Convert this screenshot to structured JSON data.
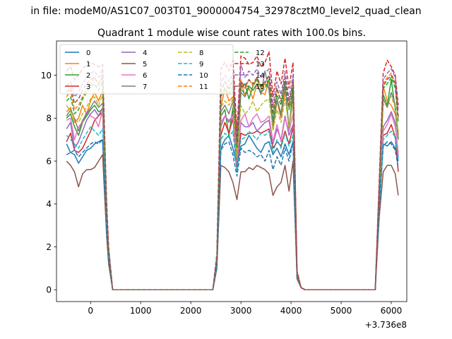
{
  "chart_data": {
    "type": "line",
    "suptitle": "in file: modeM0/AS1C07_003T01_9000004754_32978cztM0_level2_quad_clean",
    "title": "Quadrant 1 module wise count rates with 100.0s bins.",
    "xlabel": "",
    "ylabel": "",
    "x_offset_label": "+3.736e8",
    "xlim": [
      -680,
      6310
    ],
    "ylim": [
      -0.55,
      11.6
    ],
    "xticks": [
      0,
      1000,
      2000,
      3000,
      4000,
      5000,
      6000
    ],
    "xtick_labels": [
      "0",
      "1000",
      "2000",
      "3000",
      "4000",
      "5000",
      "6000"
    ],
    "yticks": [
      0,
      2,
      4,
      6,
      8,
      10
    ],
    "ytick_labels": [
      "0",
      "2",
      "4",
      "6",
      "8",
      "10"
    ],
    "x": [
      -480,
      -400,
      -320,
      -240,
      -160,
      -80,
      0,
      80,
      160,
      240,
      320,
      360,
      440,
      2440,
      2520,
      2600,
      2680,
      2760,
      2840,
      2920,
      3000,
      3080,
      3160,
      3240,
      3320,
      3400,
      3480,
      3560,
      3640,
      3720,
      3800,
      3880,
      3960,
      4040,
      4120,
      4200,
      4280,
      5680,
      5760,
      5840,
      5920,
      6000,
      6080,
      6140
    ],
    "legend": {
      "placement": "top-left",
      "columns": 4
    },
    "series": [
      {
        "name": "0",
        "color": "#1f77b4",
        "dash": "solid",
        "values": [
          6.8,
          6.4,
          6.3,
          5.9,
          6.2,
          6.5,
          6.6,
          6.8,
          6.9,
          7.0,
          3.0,
          1.5,
          0,
          0,
          1.2,
          6.6,
          7.0,
          7.2,
          6.6,
          5.8,
          6.7,
          6.8,
          7.2,
          6.9,
          6.6,
          6.4,
          6.8,
          6.9,
          6.3,
          6.6,
          6.2,
          6.8,
          6.3,
          6.9,
          0.6,
          0.1,
          0,
          0,
          4.0,
          6.8,
          6.7,
          6.9,
          6.6,
          6.0
        ]
      },
      {
        "name": "1",
        "color": "#ff7f0e",
        "dash": "solid",
        "values": [
          8.3,
          8.5,
          7.8,
          8.0,
          8.6,
          8.2,
          8.8,
          9.2,
          8.8,
          9.3,
          3.5,
          1.8,
          0,
          0,
          1.4,
          8.5,
          9.4,
          8.8,
          9.0,
          6.2,
          9.8,
          9.0,
          9.4,
          8.9,
          9.6,
          9.2,
          9.1,
          9.8,
          7.5,
          8.8,
          8.0,
          9.2,
          8.5,
          8.8,
          0.7,
          0.1,
          0,
          0,
          4.5,
          9.5,
          8.8,
          8.6,
          8.2,
          7.4
        ]
      },
      {
        "name": "2",
        "color": "#2ca02c",
        "dash": "solid",
        "values": [
          8.0,
          8.2,
          7.6,
          7.2,
          7.8,
          8.1,
          8.4,
          8.6,
          8.3,
          8.4,
          3.3,
          1.7,
          0,
          0,
          1.3,
          8.1,
          8.4,
          7.2,
          8.5,
          5.8,
          9.4,
          9.6,
          8.9,
          9.5,
          9.8,
          9.4,
          9.6,
          9.4,
          7.8,
          8.9,
          8.2,
          9.6,
          7.4,
          9.5,
          0.7,
          0.1,
          0,
          0,
          4.4,
          9.1,
          8.6,
          9.8,
          8.4,
          7.0
        ]
      },
      {
        "name": "3",
        "color": "#d62728",
        "dash": "solid",
        "values": [
          6.9,
          7.3,
          6.5,
          6.4,
          6.6,
          7.0,
          7.4,
          7.9,
          8.1,
          8.3,
          3.2,
          1.6,
          0,
          0,
          1.2,
          7.2,
          7.8,
          7.3,
          8.0,
          5.6,
          7.3,
          7.2,
          7.3,
          7.3,
          7.4,
          7.3,
          7.4,
          7.5,
          6.6,
          6.9,
          6.7,
          7.4,
          6.8,
          7.6,
          0.6,
          0.1,
          0,
          0,
          4.0,
          7.2,
          7.3,
          7.7,
          7.1,
          5.5
        ]
      },
      {
        "name": "4",
        "color": "#9467bd",
        "dash": "solid",
        "values": [
          7.5,
          7.8,
          6.6,
          6.9,
          7.4,
          7.9,
          8.2,
          8.4,
          8.1,
          8.5,
          3.3,
          1.6,
          0,
          0,
          1.3,
          7.6,
          8.1,
          7.8,
          8.2,
          5.9,
          7.8,
          7.6,
          7.6,
          7.8,
          7.4,
          7.6,
          7.8,
          7.9,
          6.8,
          7.5,
          7.0,
          8.1,
          7.2,
          7.7,
          0.6,
          0.1,
          0,
          0,
          4.2,
          7.6,
          7.9,
          8.3,
          7.8,
          6.2
        ]
      },
      {
        "name": "5",
        "color": "#8c564b",
        "dash": "solid",
        "values": [
          6.0,
          5.8,
          5.5,
          4.8,
          5.4,
          5.6,
          5.6,
          5.7,
          6.0,
          6.3,
          2.5,
          1.2,
          0,
          0,
          1.0,
          5.8,
          5.7,
          5.5,
          5.0,
          4.2,
          5.5,
          5.5,
          5.7,
          5.6,
          5.8,
          5.7,
          5.6,
          5.4,
          4.4,
          4.8,
          5.0,
          5.8,
          4.6,
          6.0,
          0.5,
          0.1,
          0,
          0,
          3.4,
          5.5,
          5.8,
          5.8,
          5.4,
          4.4
        ]
      },
      {
        "name": "6",
        "color": "#e377c2",
        "dash": "solid",
        "values": [
          7.9,
          8.0,
          7.0,
          7.6,
          7.8,
          8.3,
          8.1,
          8.0,
          7.6,
          8.4,
          3.2,
          1.6,
          0,
          0,
          1.3,
          7.8,
          8.1,
          7.9,
          8.1,
          6.0,
          7.9,
          8.2,
          7.6,
          8.0,
          8.2,
          7.8,
          7.9,
          8.1,
          6.9,
          7.7,
          6.9,
          8.0,
          7.4,
          8.2,
          0.6,
          0.1,
          0,
          0,
          4.1,
          7.4,
          7.7,
          8.2,
          7.6,
          6.4
        ]
      },
      {
        "name": "7",
        "color": "#7f7f7f",
        "dash": "solid",
        "values": [
          8.1,
          8.4,
          8.0,
          7.4,
          7.9,
          8.2,
          8.5,
          8.8,
          8.5,
          8.7,
          3.4,
          1.7,
          0,
          0,
          1.4,
          8.3,
          8.6,
          8.2,
          8.8,
          6.1,
          9.2,
          9.0,
          9.5,
          9.3,
          9.6,
          9.1,
          10.2,
          9.3,
          7.6,
          8.9,
          8.1,
          9.5,
          7.6,
          9.0,
          0.7,
          0.1,
          0,
          0,
          4.3,
          8.9,
          8.5,
          9.2,
          8.6,
          7.2
        ]
      },
      {
        "name": "8",
        "color": "#bcbd22",
        "dash": "dashed",
        "values": [
          8.6,
          8.3,
          8.0,
          7.8,
          8.2,
          8.5,
          8.9,
          9.0,
          8.6,
          9.1,
          3.4,
          1.7,
          0,
          0,
          1.4,
          8.5,
          8.8,
          8.6,
          8.9,
          6.2,
          8.6,
          8.2,
          8.4,
          8.8,
          8.3,
          8.6,
          8.8,
          8.9,
          7.4,
          8.4,
          7.8,
          8.9,
          7.6,
          8.7,
          0.7,
          0.1,
          0,
          0,
          4.4,
          8.6,
          8.8,
          9.0,
          8.5,
          7.3
        ]
      },
      {
        "name": "9",
        "color": "#17becf",
        "dash": "dashed",
        "values": [
          7.2,
          7.0,
          6.8,
          6.6,
          7.0,
          7.3,
          7.6,
          7.4,
          7.2,
          7.5,
          2.9,
          1.4,
          0,
          0,
          1.1,
          7.0,
          7.3,
          7.1,
          7.4,
          5.5,
          7.0,
          7.1,
          7.4,
          7.2,
          7.0,
          7.3,
          7.2,
          7.4,
          6.4,
          7.0,
          6.6,
          7.3,
          6.7,
          7.2,
          0.6,
          0.1,
          0,
          0,
          3.8,
          7.0,
          7.2,
          7.4,
          7.1,
          6.1
        ]
      },
      {
        "name": "10",
        "color": "#1f77b4",
        "dash": "dashed",
        "values": [
          6.3,
          6.4,
          6.5,
          6.2,
          6.4,
          6.6,
          6.8,
          6.9,
          6.8,
          7.0,
          2.8,
          1.4,
          0,
          0,
          1.1,
          6.5,
          6.8,
          6.9,
          6.3,
          5.3,
          6.6,
          6.4,
          6.5,
          6.4,
          6.2,
          6.3,
          6.0,
          6.5,
          5.6,
          6.2,
          5.8,
          6.6,
          6.0,
          6.9,
          0.6,
          0.1,
          0,
          0,
          3.8,
          6.7,
          6.9,
          6.8,
          6.5,
          5.7
        ]
      },
      {
        "name": "11",
        "color": "#ff7f0e",
        "dash": "dashed",
        "values": [
          9.0,
          9.3,
          8.4,
          8.6,
          9.0,
          9.4,
          9.6,
          9.9,
          9.5,
          10.1,
          3.8,
          1.9,
          0,
          0,
          1.5,
          9.2,
          9.7,
          9.3,
          9.8,
          6.8,
          9.6,
          9.4,
          9.8,
          9.5,
          9.9,
          9.4,
          9.6,
          10.0,
          8.2,
          9.3,
          8.8,
          9.9,
          8.6,
          9.7,
          0.8,
          0.1,
          0,
          0,
          4.7,
          9.6,
          9.9,
          10.1,
          9.6,
          8.0
        ]
      },
      {
        "name": "12",
        "color": "#2ca02c",
        "dash": "dashed",
        "values": [
          8.8,
          9.0,
          8.2,
          8.4,
          8.9,
          9.2,
          9.5,
          9.6,
          9.3,
          9.7,
          3.7,
          1.8,
          0,
          0,
          1.5,
          9.0,
          9.4,
          9.1,
          9.5,
          6.6,
          9.4,
          9.1,
          9.5,
          9.3,
          9.6,
          9.2,
          9.4,
          9.8,
          8.0,
          9.1,
          8.6,
          9.7,
          8.4,
          9.5,
          0.7,
          0.1,
          0,
          0,
          4.6,
          9.4,
          9.6,
          9.9,
          9.4,
          7.8
        ]
      },
      {
        "name": "13",
        "color": "#d62728",
        "dash": "dashed",
        "values": [
          10.2,
          10.4,
          9.8,
          10.0,
          10.3,
          10.5,
          10.6,
          10.5,
          10.4,
          10.5,
          4.1,
          2.0,
          0,
          0,
          1.7,
          10.3,
          10.6,
          10.2,
          10.7,
          7.4,
          10.9,
          10.8,
          10.5,
          10.6,
          10.9,
          10.4,
          10.6,
          11.1,
          9.0,
          10.2,
          9.6,
          10.8,
          9.4,
          10.6,
          0.9,
          0.1,
          0,
          0,
          5.2,
          10.1,
          10.7,
          10.4,
          10.0,
          8.6
        ]
      },
      {
        "name": "14",
        "color": "#9467bd",
        "dash": "dashed",
        "values": [
          9.5,
          9.7,
          9.0,
          9.2,
          9.6,
          9.9,
          10.1,
          10.2,
          9.9,
          10.3,
          3.9,
          1.9,
          0,
          0,
          1.6,
          9.6,
          10.0,
          9.7,
          10.1,
          7.0,
          10.5,
          9.9,
          10.2,
          10.0,
          10.3,
          9.9,
          10.1,
          10.3,
          8.6,
          9.7,
          9.1,
          10.2,
          8.9,
          10.0,
          0.8,
          0.1,
          0,
          0,
          4.9,
          9.8,
          10.1,
          10.3,
          9.9,
          8.3
        ]
      },
      {
        "name": "15",
        "color": "#8c564b",
        "dash": "dashed",
        "values": [
          9.2,
          9.4,
          8.7,
          8.9,
          9.3,
          9.6,
          9.8,
          9.9,
          9.6,
          9.9,
          3.8,
          1.9,
          0,
          0,
          1.5,
          9.3,
          9.7,
          9.4,
          9.8,
          6.8,
          9.7,
          9.5,
          9.8,
          9.6,
          9.9,
          9.5,
          9.7,
          10.0,
          8.3,
          9.4,
          8.8,
          9.9,
          8.6,
          9.7,
          0.8,
          0.1,
          0,
          0,
          4.7,
          9.5,
          9.8,
          10.0,
          9.6,
          8.0
        ]
      }
    ]
  }
}
